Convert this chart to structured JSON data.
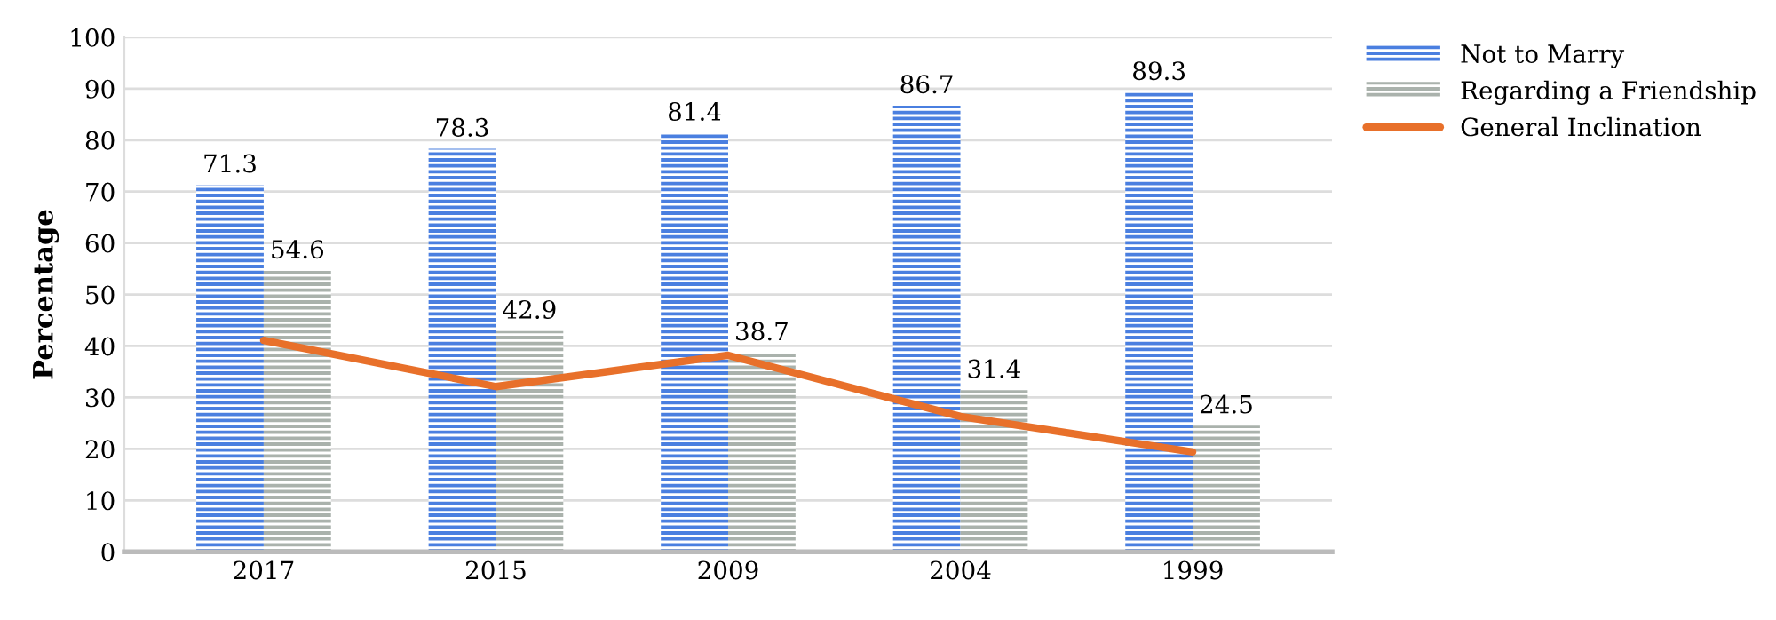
{
  "chart_data": {
    "type": "bar",
    "ylabel": "Percentage",
    "categories": [
      "2017",
      "2015",
      "2009",
      "2004",
      "1999"
    ],
    "series": [
      {
        "name": "Not to Marry",
        "color": "#4a7fe0",
        "values": [
          71.3,
          78.3,
          81.4,
          86.7,
          89.3
        ],
        "value_labels": [
          "71.3",
          "78.3",
          "81.4",
          "86.7",
          "89.3"
        ]
      },
      {
        "name": "Regarding a Friendship",
        "color": "#aab2ac",
        "values": [
          54.6,
          42.9,
          38.7,
          31.4,
          24.5
        ],
        "value_labels": [
          "54.6",
          "42.9",
          "38.7",
          "31.4",
          "24.5"
        ]
      },
      {
        "name": "General Inclination",
        "color": "#e8702a",
        "type": "line",
        "values": [
          41.1,
          32.1,
          38.2,
          26.3,
          19.4
        ]
      }
    ],
    "ylim": [
      0,
      100
    ],
    "yticks": [
      0,
      10,
      20,
      30,
      40,
      50,
      60,
      70,
      80,
      90,
      100
    ],
    "grid": "y",
    "legend": "top right",
    "marker": "none",
    "line_style": "solid"
  }
}
